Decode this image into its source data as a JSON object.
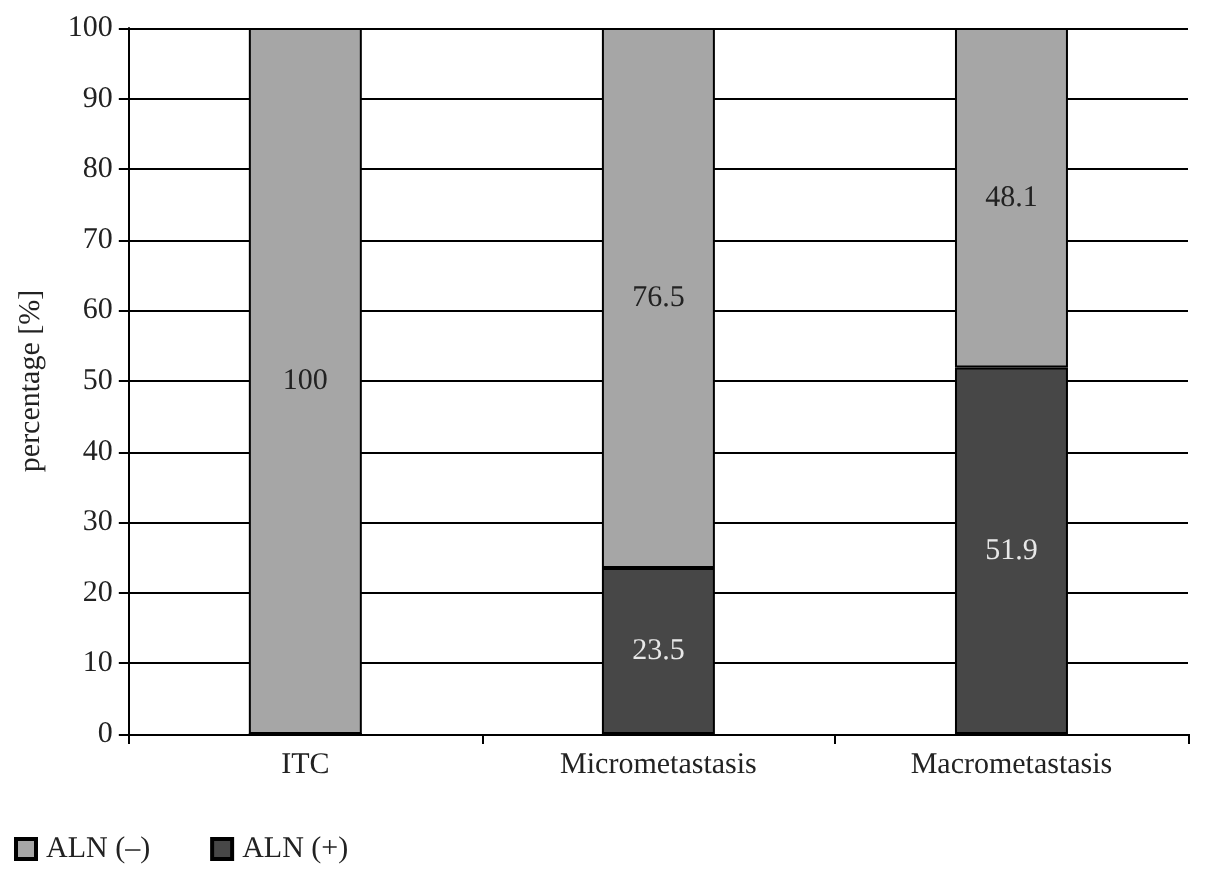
{
  "chart_data": {
    "type": "bar",
    "stacked": true,
    "ylabel": "percentage [%]",
    "categories": [
      "ITC",
      "Micrometastasis",
      "Macrometastasis"
    ],
    "series": [
      {
        "name": "ALN (+)",
        "color": "#474747",
        "values": [
          0,
          23.5,
          51.9
        ],
        "value_labels": [
          null,
          "23.5",
          "51.9"
        ]
      },
      {
        "name": "ALN (–)",
        "color": "#a6a6a6",
        "values": [
          100,
          76.5,
          48.1
        ],
        "value_labels": [
          "100",
          "76.5",
          "48.1"
        ]
      }
    ],
    "ylim": [
      0,
      100
    ],
    "yticks": [
      0,
      10,
      20,
      30,
      40,
      50,
      60,
      70,
      80,
      90,
      100
    ],
    "grid": "y",
    "legend": "bottom left"
  }
}
